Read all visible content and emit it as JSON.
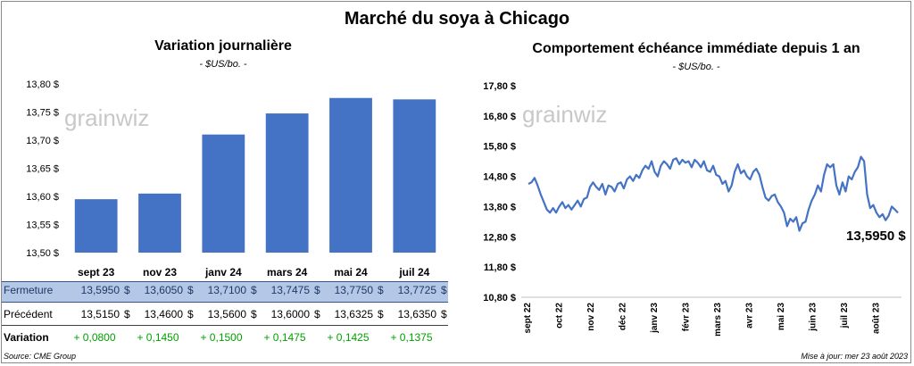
{
  "page": {
    "title": "Marché du soya à Chicago",
    "source": "Source: CME Group",
    "updated": "Mise à jour: mer 23 août 2023",
    "watermark": "grainwiz"
  },
  "left": {
    "title": "Variation journalière",
    "unit": "- $US/bo. -"
  },
  "right": {
    "title": "Comportement échéance immédiate depuis 1 an",
    "unit": "- $US/bo. -",
    "last_label": "13,5950 $"
  },
  "table": {
    "rows": [
      {
        "label": "Fermeture",
        "values": [
          "13,5950",
          "13,6050",
          "13,7100",
          "13,7475",
          "13,7750",
          "13,7725"
        ],
        "unit": "$"
      },
      {
        "label": "Précédent",
        "values": [
          "13,5150",
          "13,4600",
          "13,5600",
          "13,6000",
          "13,6325",
          "13,6350"
        ],
        "unit": "$"
      },
      {
        "label": "Variation",
        "values": [
          "+ 0,0800",
          "+ 0,1450",
          "+ 0,1500",
          "+ 0,1475",
          "+ 0,1425",
          "+ 0,1375"
        ],
        "unit": ""
      }
    ]
  },
  "colors": {
    "bar": "#4472c4",
    "line": "#4472c4",
    "close_row": "#b4c7e7",
    "positive": "#00a000"
  },
  "chart_data": [
    {
      "type": "bar",
      "categories": [
        "sept 23",
        "nov 23",
        "janv 24",
        "mars 24",
        "mai 24",
        "juil 24"
      ],
      "values": [
        13.595,
        13.605,
        13.71,
        13.7475,
        13.775,
        13.7725
      ],
      "ylim": [
        13.5,
        13.8
      ],
      "yticks": [
        13.5,
        13.55,
        13.6,
        13.65,
        13.7,
        13.75,
        13.8
      ],
      "ytick_labels": [
        "13,50 $",
        "13,55 $",
        "13,60 $",
        "13,65 $",
        "13,70 $",
        "13,75 $",
        "13,80 $"
      ],
      "grid": false
    },
    {
      "type": "line",
      "x_labels": [
        "sept 22",
        "oct 22",
        "nov 22",
        "déc 22",
        "janv 23",
        "févr 23",
        "mars 23",
        "avr 23",
        "mai 23",
        "juin 23",
        "juil 23",
        "août 23"
      ],
      "ylim": [
        10.8,
        17.8
      ],
      "yticks": [
        10.8,
        11.8,
        12.8,
        13.8,
        14.8,
        15.8,
        16.8,
        17.8
      ],
      "ytick_labels": [
        "10,80 $",
        "11,80 $",
        "12,80 $",
        "13,80 $",
        "14,80 $",
        "15,80 $",
        "16,80 $",
        "17,80 $"
      ],
      "grid": false,
      "y": [
        14.55,
        14.6,
        14.75,
        14.5,
        14.2,
        13.95,
        13.7,
        13.6,
        13.75,
        13.6,
        13.8,
        13.95,
        13.75,
        13.85,
        13.7,
        13.85,
        14.0,
        13.8,
        14.05,
        14.1,
        14.45,
        14.6,
        14.45,
        14.35,
        14.55,
        14.2,
        14.5,
        14.45,
        14.3,
        14.55,
        14.6,
        14.4,
        14.7,
        14.8,
        14.65,
        14.85,
        14.75,
        15.0,
        15.15,
        15.05,
        15.3,
        14.95,
        14.8,
        15.15,
        15.3,
        15.2,
        15.05,
        15.35,
        15.4,
        15.2,
        15.35,
        15.25,
        15.3,
        15.1,
        15.35,
        15.25,
        15.1,
        15.3,
        15.0,
        14.95,
        15.15,
        14.85,
        14.8,
        14.55,
        14.65,
        14.3,
        14.5,
        14.95,
        15.2,
        14.9,
        15.0,
        14.8,
        14.7,
        14.95,
        15.05,
        14.85,
        14.45,
        14.1,
        14.0,
        14.15,
        14.2,
        13.95,
        13.8,
        13.6,
        13.15,
        13.4,
        13.3,
        13.45,
        13.0,
        13.25,
        13.3,
        13.7,
        14.0,
        14.2,
        14.5,
        14.3,
        14.85,
        15.2,
        15.1,
        15.2,
        14.5,
        14.2,
        14.6,
        14.3,
        14.8,
        14.7,
        14.95,
        15.1,
        15.45,
        15.3,
        14.2,
        13.75,
        13.85,
        13.6,
        13.45,
        13.55,
        13.35,
        13.5,
        13.8,
        13.7,
        13.595
      ]
    }
  ]
}
